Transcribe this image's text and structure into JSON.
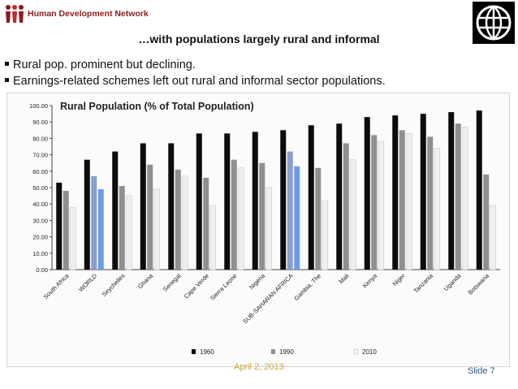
{
  "header": {
    "network_name": "Human Development Network",
    "logo_icon": "human-figures-icon",
    "wb_logo_icon": "world-bank-globe-icon"
  },
  "slide": {
    "title": "…with populations largely rural and informal",
    "bullets": [
      "Rural pop. prominent but declining.",
      "Earnings-related schemes left out rural and informal sector populations."
    ],
    "date": "April 2, 2013",
    "slide_number": "Slide 7"
  },
  "colors": {
    "series_1960": "#0c0c0c",
    "series_1990": "#8f8f8f",
    "series_2010": "#efefef",
    "highlight_1990": "#8a9fcf",
    "highlight_2010": "#6f9be6",
    "logo_red": "#8a1c1c",
    "date_gold": "#c9a43a",
    "slide_number_blue": "#2a5b8a"
  },
  "chart_data": {
    "type": "bar",
    "title": "Rural Population (% of Total Population)",
    "categories": [
      "South Africa",
      "WORLD",
      "Seychelles",
      "Ghana",
      "Senegal",
      "Cape Verde",
      "Sierra Leone",
      "Nigeria",
      "SUB-SAHARAN AFRICA",
      "Gambia, The",
      "Mali",
      "Kenya",
      "Niger",
      "Tanzania",
      "Uganda",
      "Botswana"
    ],
    "highlighted_categories": [
      "WORLD",
      "SUB-SAHARAN AFRICA"
    ],
    "series": [
      {
        "name": "1960",
        "values": [
          53,
          67,
          72,
          77,
          77,
          83,
          83,
          84,
          85,
          88,
          89,
          93,
          94,
          95,
          96,
          97
        ]
      },
      {
        "name": "1990",
        "values": [
          48,
          57,
          51,
          64,
          61,
          56,
          67,
          65,
          72,
          62,
          77,
          82,
          85,
          81,
          89,
          58
        ]
      },
      {
        "name": "2010",
        "values": [
          38,
          49,
          45,
          49,
          57,
          39,
          62,
          50,
          63,
          42,
          67,
          78,
          83,
          74,
          87,
          39
        ]
      }
    ],
    "yticks": [
      "0.00",
      "10.00",
      "20.00",
      "30.00",
      "40.00",
      "50.00",
      "60.00",
      "70.00",
      "80.00",
      "90.00",
      "100.00"
    ],
    "ylim": [
      0,
      100
    ],
    "xlabel": "",
    "ylabel": "",
    "grid": false,
    "legend_position": "bottom"
  }
}
